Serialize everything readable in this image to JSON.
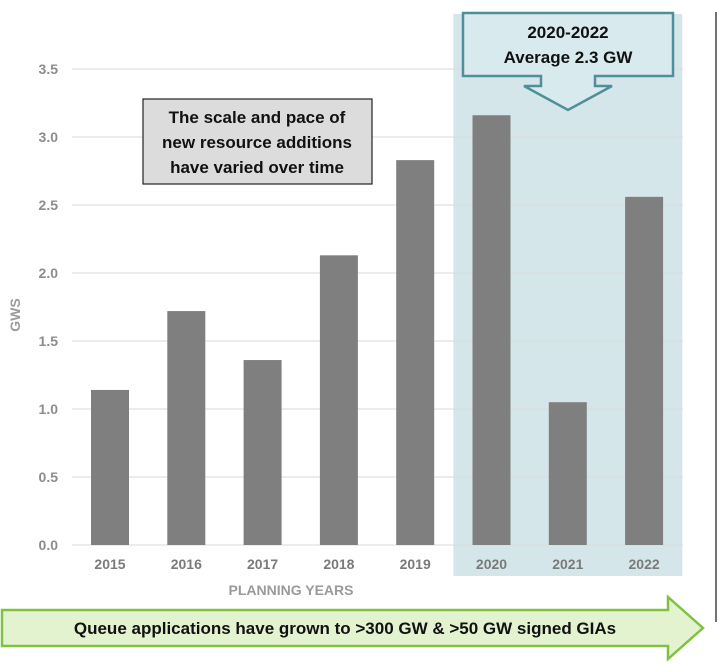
{
  "chart_data": {
    "type": "bar",
    "categories": [
      "2015",
      "2016",
      "2017",
      "2018",
      "2019",
      "2020",
      "2021",
      "2022"
    ],
    "values": [
      1.14,
      1.72,
      1.36,
      2.13,
      2.83,
      3.16,
      1.05,
      2.56
    ],
    "xlabel": "PLANNING YEARS",
    "ylabel": "GWS",
    "ylim": [
      0,
      3.5
    ],
    "yticks": [
      "0.0",
      "0.5",
      "1.0",
      "1.5",
      "2.0",
      "2.5",
      "3.0",
      "3.5"
    ],
    "grid": true,
    "bar_color": "#7f7f7f",
    "highlight": {
      "categories": [
        "2020",
        "2021",
        "2022"
      ],
      "color": "#d5e6ea",
      "label_line1": "2020-2022",
      "label_line2": "Average 2.3 GW",
      "border_color": "#4f8f99"
    },
    "annotation": {
      "lines": [
        "The scale and pace of",
        "new resource additions",
        "have varied over time"
      ],
      "fill": "#dcdcdc"
    }
  },
  "banner": {
    "text": "Queue applications have grown to >300 GW & >50 GW signed GIAs",
    "fill": "#e3f3cf",
    "border": "#7fc241"
  }
}
